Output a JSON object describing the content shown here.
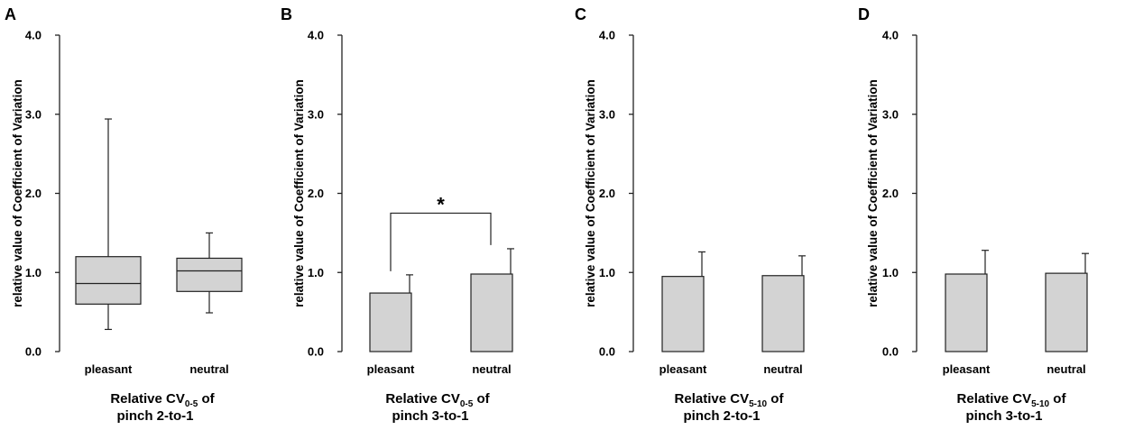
{
  "chart_data": [
    {
      "panel": "A",
      "type": "box",
      "ylabel": "relative value of Coefficient of Variation",
      "ylim": [
        0,
        4
      ],
      "yticks": [
        "0.0",
        "1.0",
        "2.0",
        "3.0",
        "4.0"
      ],
      "categories": [
        "pleasant",
        "neutral"
      ],
      "boxes": [
        {
          "min": 0.28,
          "q1": 0.6,
          "median": 0.86,
          "q3": 1.2,
          "max": 2.94
        },
        {
          "min": 0.49,
          "q1": 0.76,
          "median": 1.02,
          "q3": 1.18,
          "max": 1.5
        }
      ],
      "xlabel_line1": "Relative CV",
      "xlabel_sub": "0-5",
      "xlabel_after": " of",
      "xlabel_line2": "pinch 2-to-1"
    },
    {
      "panel": "B",
      "type": "bar",
      "ylabel": "relative value of Coefficient of Variation",
      "ylim": [
        0,
        4
      ],
      "yticks": [
        "0.0",
        "1.0",
        "2.0",
        "3.0",
        "4.0"
      ],
      "categories": [
        "pleasant",
        "neutral"
      ],
      "values": [
        0.74,
        0.98
      ],
      "errors": [
        0.23,
        0.32
      ],
      "significance": {
        "label": "*",
        "bracket_y": 1.75
      },
      "xlabel_line1": "Relative CV",
      "xlabel_sub": "0-5",
      "xlabel_after": " of",
      "xlabel_line2": "pinch 3-to-1"
    },
    {
      "panel": "C",
      "type": "bar",
      "ylabel": "relative value of Coefficient of Variation",
      "ylim": [
        0,
        4
      ],
      "yticks": [
        "0.0",
        "1.0",
        "2.0",
        "3.0",
        "4.0"
      ],
      "categories": [
        "pleasant",
        "neutral"
      ],
      "values": [
        0.95,
        0.96
      ],
      "errors": [
        0.31,
        0.25
      ],
      "xlabel_line1": "Relative CV",
      "xlabel_sub": "5-10",
      "xlabel_after": " of",
      "xlabel_line2": "pinch 2-to-1"
    },
    {
      "panel": "D",
      "type": "bar",
      "ylabel": "relative value of Coefficient of Variation",
      "ylim": [
        0,
        4
      ],
      "yticks": [
        "0.0",
        "1.0",
        "2.0",
        "3.0",
        "4.0"
      ],
      "categories": [
        "pleasant",
        "neutral"
      ],
      "values": [
        0.98,
        0.99
      ],
      "errors": [
        0.3,
        0.25
      ],
      "xlabel_line1": "Relative CV",
      "xlabel_sub": "5-10",
      "xlabel_after": " of",
      "xlabel_line2": "pinch 3-to-1"
    }
  ],
  "colors": {
    "fill": "#d3d3d3",
    "stroke": "#222222"
  }
}
